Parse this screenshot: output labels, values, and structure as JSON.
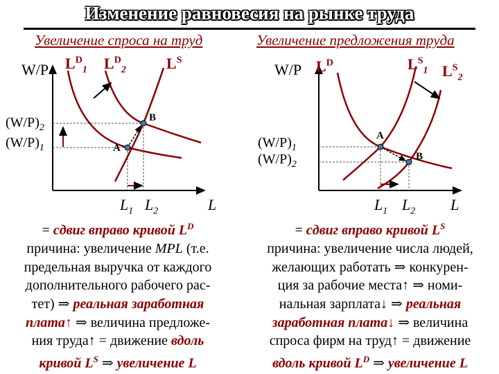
{
  "title": "Изменение равновесия на рынке труда",
  "left": {
    "subtitle": "Увеличение спроса на труд",
    "axis_y": "W/P",
    "axis_x": "L",
    "ld1": "L",
    "ld1_sup": "D",
    "ld1_sub": "1",
    "ld2": "L",
    "ld2_sup": "D",
    "ld2_sub": "2",
    "ls": "L",
    "ls_sup": "S",
    "wp2": "(W/P)",
    "wp2_sub": "2",
    "wp1": "(W/P)",
    "wp1_sub": "1",
    "l1": "L",
    "l1_sub": "1",
    "l2": "L",
    "l2_sub": "2",
    "point_a": "A",
    "point_b": "B",
    "lines": [
      [
        {
          "t": "= "
        },
        {
          "t": "сдвиг вправо кривой L",
          "c": "red"
        },
        {
          "t": "D",
          "c": "red",
          "sup": true
        }
      ],
      [
        {
          "t": "причина: увеличение "
        },
        {
          "t": "MPL",
          "c": "it"
        },
        {
          "t": " (т.е."
        }
      ],
      [
        {
          "t": "предельная выручка от каждого"
        }
      ],
      [
        {
          "t": "дополнительного рабочего рас-"
        }
      ],
      [
        {
          "t": "тет) ⇒ "
        },
        {
          "t": "реальная заработная",
          "c": "red"
        }
      ],
      [
        {
          "t": "плата",
          "c": "red"
        },
        {
          "t": "↑",
          "c": "red"
        },
        {
          "t": " ⇒ величина предложе-"
        }
      ],
      [
        {
          "t": "ния труда↑ = движение "
        },
        {
          "t": "вдоль",
          "c": "red"
        }
      ],
      [
        {
          "t": "кривой L",
          "c": "red"
        },
        {
          "t": "S",
          "c": "red",
          "sup": true
        },
        {
          "t": " ⇒ "
        },
        {
          "t": "увеличение L",
          "c": "red"
        }
      ]
    ]
  },
  "right": {
    "subtitle": "Увеличение предложения труда",
    "axis_y": "W/P",
    "axis_x": "L",
    "ld": "L",
    "ld_sup": "D",
    "ls1": "L",
    "ls1_sup": "S",
    "ls1_sub": "1",
    "ls2": "L",
    "ls2_sup": "S",
    "ls2_sub": "2",
    "wp1": "(W/P)",
    "wp1_sub": "1",
    "wp2": "(W/P)",
    "wp2_sub": "2",
    "l1": "L",
    "l1_sub": "1",
    "l2": "L",
    "l2_sub": "2",
    "point_a": "A",
    "point_b": "B",
    "lines": [
      [
        {
          "t": "= "
        },
        {
          "t": "сдвиг вправо кривой L",
          "c": "red"
        },
        {
          "t": "S",
          "c": "red",
          "sup": true
        }
      ],
      [
        {
          "t": "причина: увеличение числа людей,"
        }
      ],
      [
        {
          "t": "желающих работать ⇒ конкурен-"
        }
      ],
      [
        {
          "t": "ция за рабочие места↑ ⇒ номи-"
        }
      ],
      [
        {
          "t": "нальная зарплата↓ ⇒ "
        },
        {
          "t": "реальная",
          "c": "red"
        }
      ],
      [
        {
          "t": "заработная плата",
          "c": "red"
        },
        {
          "t": "↓",
          "c": "red"
        },
        {
          "t": " ⇒ величина"
        }
      ],
      [
        {
          "t": "спроса фирм на труд↑ = движение"
        }
      ],
      [
        {
          "t": "вдоль кривой L",
          "c": "red"
        },
        {
          "t": "D",
          "c": "red",
          "sup": true
        },
        {
          "t": " ⇒ "
        },
        {
          "t": "увеличение L",
          "c": "red"
        }
      ]
    ]
  },
  "colors": {
    "curve": "#8b0000",
    "point": "#3a7fa8",
    "axis": "#000000",
    "guide": "#555555"
  }
}
